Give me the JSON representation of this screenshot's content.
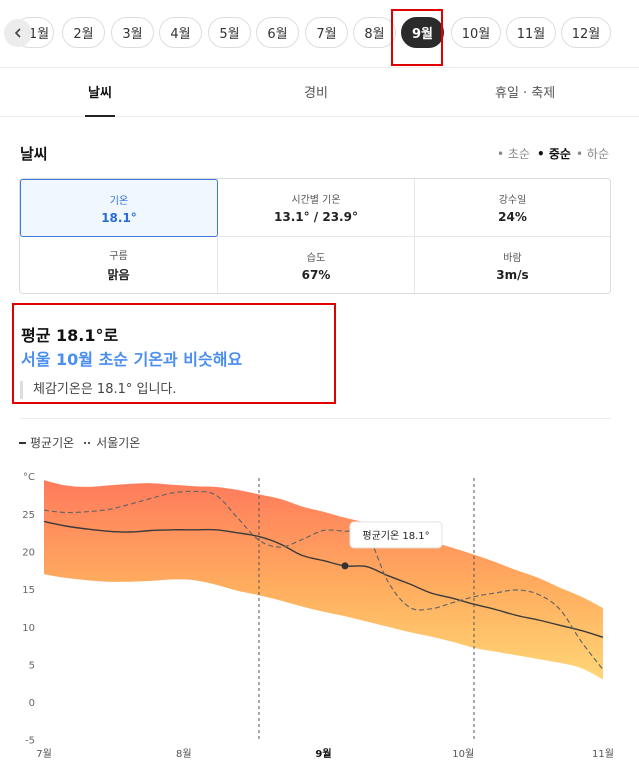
{
  "months": {
    "back_icon": "chevron-left-icon",
    "items": [
      "1월",
      "2월",
      "3월",
      "4월",
      "5월",
      "6월",
      "7월",
      "8월",
      "9월",
      "10월",
      "11월",
      "12월"
    ],
    "active": "9월"
  },
  "tabs": [
    "날씨",
    "경비",
    "휴일 · 축제"
  ],
  "weather": {
    "title": "날씨",
    "periods": [
      "초순",
      "중순",
      "하순"
    ],
    "active_period": "중순",
    "stats": [
      {
        "label": "기온",
        "value": "18.1°"
      },
      {
        "label": "시간별 기온",
        "value": "13.1° / 23.9°"
      },
      {
        "label": "강수일",
        "value": "24%"
      },
      {
        "label": "구름",
        "value": "맑음"
      },
      {
        "label": "습도",
        "value": "67%"
      },
      {
        "label": "바람",
        "value": "3m/s"
      }
    ],
    "summary_line1": "평균 18.1°로",
    "summary_line2": "서울 10월 초순 기온과 비슷해요",
    "feels_like": "체감기온은 18.1° 입니다."
  },
  "legend": {
    "avg": "평균기온",
    "seoul": "서울기온"
  },
  "colors": {
    "accent": "#4a8ef0",
    "highlight_box": "#e00000",
    "band_top": "#ff7a5c",
    "band_bottom": "#ffd676"
  },
  "chart_data": {
    "type": "area",
    "unit_label": "°C",
    "ylim": [
      -5,
      25
    ],
    "yticks": [
      25,
      20,
      15,
      10,
      5,
      0,
      -5
    ],
    "x_labels": [
      "7월",
      "8월",
      "9월",
      "10월",
      "11월"
    ],
    "highlight_label": "9월",
    "x": [
      0,
      0.5,
      1,
      1.5,
      2,
      2.5,
      3,
      3.5,
      4,
      4.5,
      5,
      5.5,
      6,
      6.5,
      7,
      7.5,
      8,
      8.5,
      9,
      9.5,
      10,
      10.5,
      11,
      11.5,
      12,
      12.5,
      13
    ],
    "band_high": [
      29.5,
      28.8,
      28.6,
      28.8,
      29.0,
      29.1,
      28.9,
      28.7,
      28.6,
      28.2,
      27.6,
      27.0,
      26.0,
      25.3,
      24.5,
      23.8,
      22.9,
      22.0,
      21.3,
      20.5,
      19.6,
      18.6,
      17.5,
      16.5,
      15.2,
      14.0,
      12.5
    ],
    "band_low": [
      17.0,
      16.5,
      16.2,
      16.0,
      16.0,
      16.1,
      16.3,
      16.2,
      15.6,
      14.8,
      14.2,
      13.5,
      12.7,
      12.0,
      11.4,
      10.7,
      10.0,
      9.3,
      8.7,
      8.0,
      7.2,
      6.7,
      6.2,
      5.7,
      5.2,
      4.5,
      3.0
    ],
    "series": [
      {
        "name": "평균기온",
        "values": [
          24.0,
          23.4,
          23.0,
          22.7,
          22.6,
          22.8,
          22.9,
          22.9,
          22.9,
          22.5,
          22.0,
          21.0,
          19.5,
          18.8,
          18.1,
          18.0,
          16.8,
          15.7,
          14.5,
          13.8,
          13.0,
          12.3,
          11.5,
          10.9,
          10.2,
          9.5,
          8.6
        ]
      },
      {
        "name": "서울기온",
        "values": [
          25.5,
          25.2,
          25.3,
          25.6,
          26.3,
          27.1,
          27.8,
          28.0,
          27.5,
          24.5,
          21.5,
          20.6,
          21.6,
          22.8,
          22.7,
          22.4,
          16.0,
          12.6,
          12.4,
          13.2,
          14.0,
          14.5,
          14.9,
          14.3,
          12.3,
          8.0,
          4.3
        ]
      }
    ],
    "vlines_at": [
      5,
      10
    ],
    "tooltip": {
      "text": "평균기온 18.1°",
      "x": 7,
      "y": 18.1
    }
  }
}
